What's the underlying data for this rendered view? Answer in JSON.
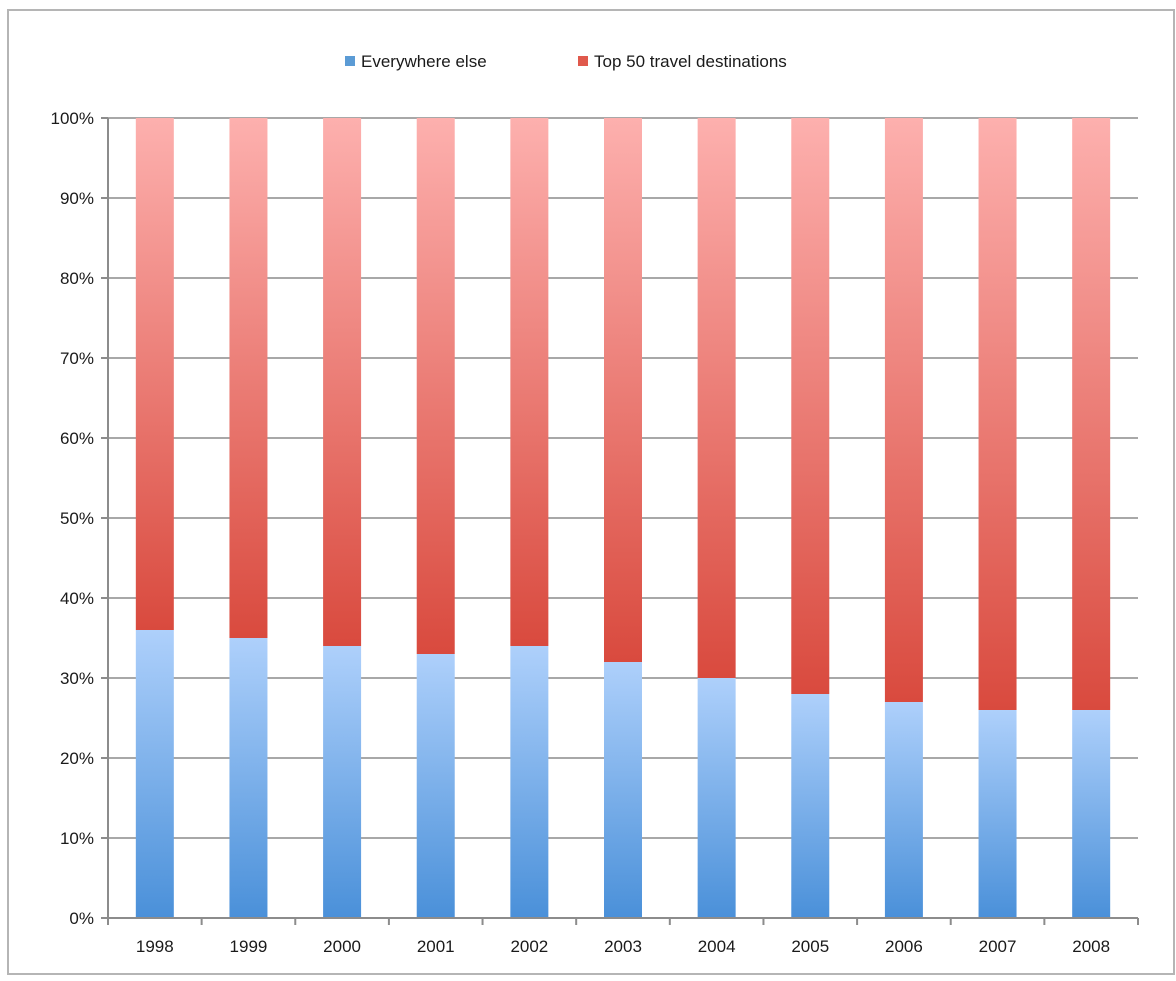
{
  "chart_data": {
    "type": "bar",
    "stacked": true,
    "normalized": true,
    "categories": [
      "1998",
      "1999",
      "2000",
      "2001",
      "2002",
      "2003",
      "2004",
      "2005",
      "2006",
      "2007",
      "2008"
    ],
    "series": [
      {
        "name": "Everywhere else",
        "values": [
          36,
          35,
          34,
          33,
          34,
          32,
          30,
          28,
          27,
          26,
          26
        ],
        "color": "#5b9bd5"
      },
      {
        "name": "Top 50 travel destinations",
        "values": [
          64,
          65,
          66,
          67,
          66,
          68,
          70,
          72,
          73,
          74,
          74
        ],
        "color": "#e0594c"
      }
    ],
    "ylim": [
      0,
      100
    ],
    "yticks": [
      "0%",
      "10%",
      "20%",
      "30%",
      "40%",
      "50%",
      "60%",
      "70%",
      "80%",
      "90%",
      "100%"
    ],
    "grid": true,
    "legend_position": "top"
  }
}
